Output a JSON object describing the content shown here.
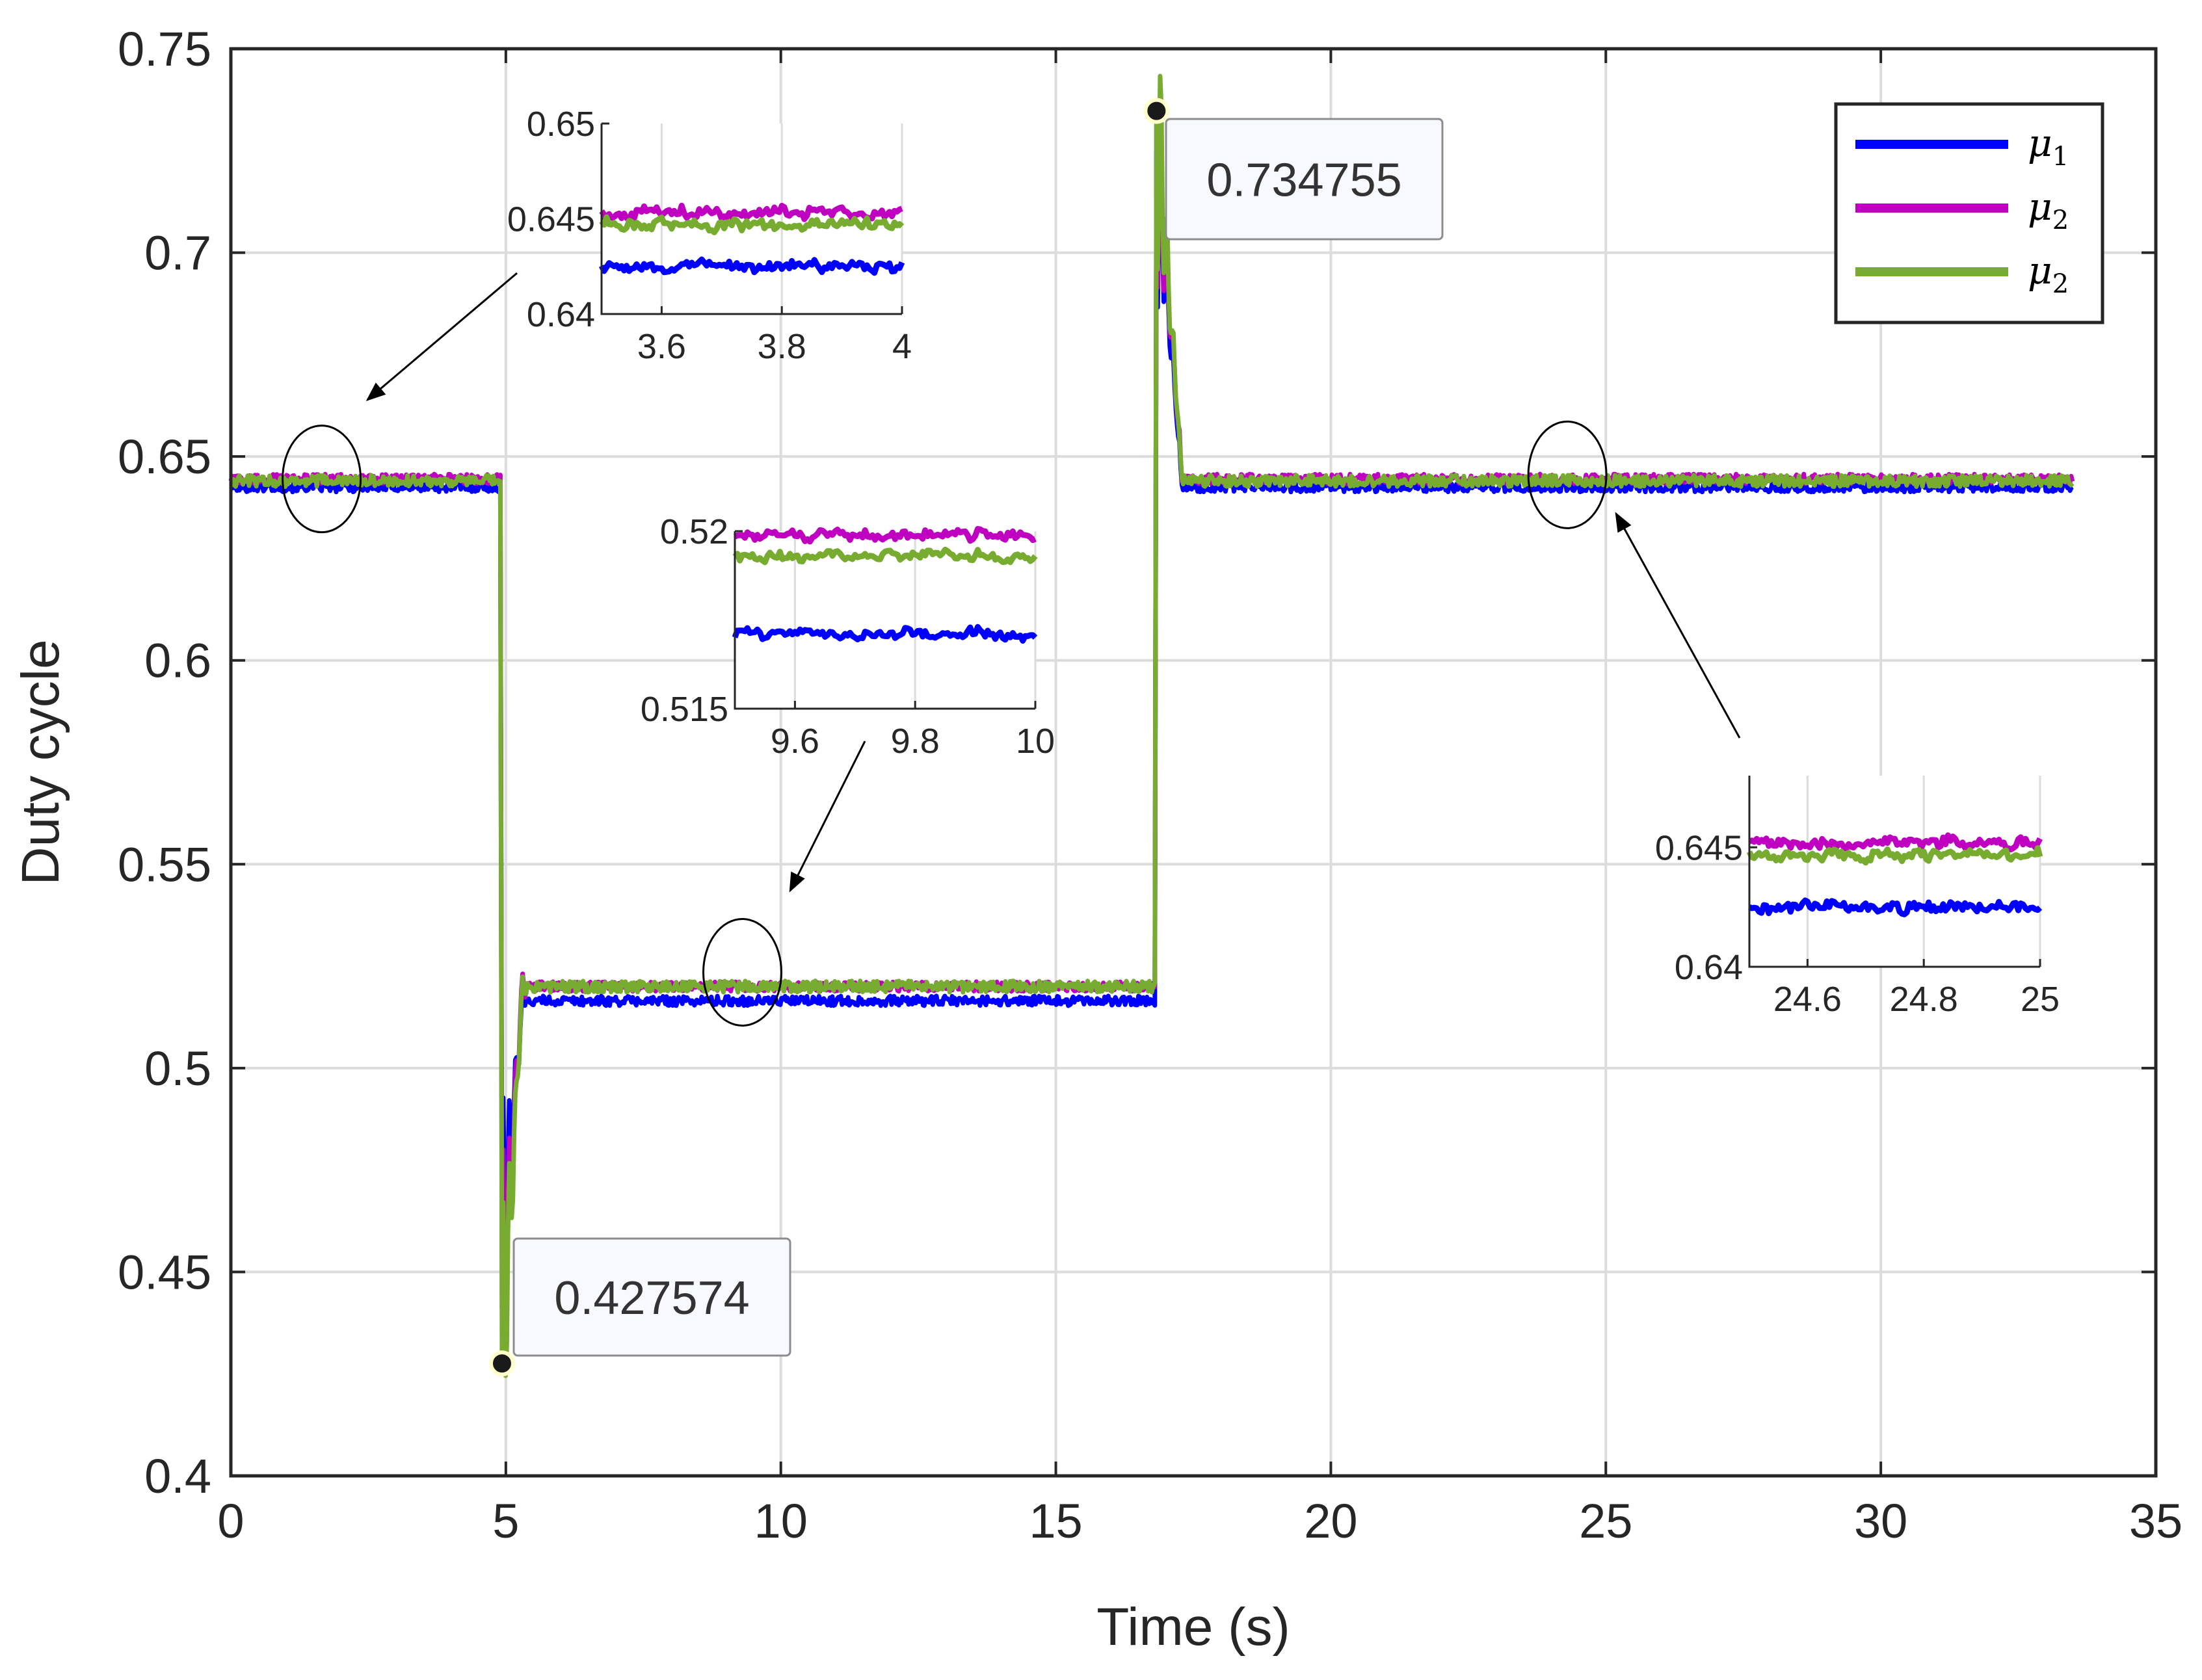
{
  "chart_data": {
    "type": "line",
    "title": "",
    "xlabel": "Time (s)",
    "ylabel": "Duty cycle",
    "xlim": [
      0,
      35
    ],
    "ylim": [
      0.4,
      0.75
    ],
    "xticks": [
      "0",
      "5",
      "10",
      "15",
      "20",
      "25",
      "30",
      "35"
    ],
    "yticks": [
      "0.4",
      "0.45",
      "0.5",
      "0.55",
      "0.6",
      "0.65",
      "0.7",
      "0.75"
    ],
    "grid": true,
    "legend": {
      "position": "top-right",
      "entries": [
        {
          "base": "μ",
          "sub": "1",
          "color": "#0000ff"
        },
        {
          "base": "μ",
          "sub": "2",
          "color": "#c000c0"
        },
        {
          "base": "μ",
          "sub": "2",
          "color": "#77ac30"
        }
      ]
    },
    "series": [
      {
        "name": "μ1",
        "color": "#0000ff",
        "noise": 0.0012,
        "levels": [
          [
            0,
            0.6425
          ],
          [
            4.9,
            0.6425
          ],
          [
            4.93,
            0.455
          ],
          [
            5.3,
            0.5165
          ],
          [
            16.8,
            0.5165
          ],
          [
            16.83,
            0.725
          ],
          [
            17.3,
            0.6425
          ],
          [
            33.5,
            0.6425
          ]
        ]
      },
      {
        "name": "μ2",
        "color": "#c000c0",
        "noise": 0.0012,
        "levels": [
          [
            0,
            0.6445
          ],
          [
            4.9,
            0.6445
          ],
          [
            4.93,
            0.44
          ],
          [
            5.3,
            0.52
          ],
          [
            16.8,
            0.52
          ],
          [
            16.83,
            0.73
          ],
          [
            17.3,
            0.6445
          ],
          [
            33.5,
            0.6445
          ]
        ]
      },
      {
        "name": "μ2",
        "color": "#77ac30",
        "noise": 0.0014,
        "levels": [
          [
            0,
            0.644
          ],
          [
            4.9,
            0.644
          ],
          [
            4.93,
            0.4276
          ],
          [
            5.3,
            0.52
          ],
          [
            16.8,
            0.52
          ],
          [
            16.83,
            0.7348
          ],
          [
            17.3,
            0.644
          ],
          [
            33.5,
            0.644
          ]
        ]
      }
    ],
    "datatips": [
      {
        "x": 4.93,
        "y": 0.427574,
        "label": "0.427574"
      },
      {
        "x": 16.83,
        "y": 0.734755,
        "label": "0.734755"
      }
    ],
    "insets": [
      {
        "xlim": [
          3.5,
          4.0
        ],
        "ylim": [
          0.64,
          0.65
        ],
        "xticks": [
          "3.6",
          "3.8",
          "4"
        ],
        "yticks": [
          "0.64",
          "0.645",
          "0.65"
        ],
        "means": [
          0.6425,
          0.6453,
          0.6447
        ],
        "zoom_center": [
          1.65,
          0.6445
        ]
      },
      {
        "xlim": [
          9.5,
          10.0
        ],
        "ylim": [
          0.515,
          0.52
        ],
        "xticks": [
          "9.6",
          "9.8",
          "10"
        ],
        "yticks": [
          "0.515",
          "0.52"
        ],
        "means": [
          0.5171,
          0.5199,
          0.5193
        ],
        "zoom_center": [
          9.3,
          0.5235
        ]
      },
      {
        "xlim": [
          24.5,
          25.0
        ],
        "ylim": [
          0.64,
          0.648
        ],
        "xticks": [
          "24.6",
          "24.8",
          "25"
        ],
        "yticks": [
          "0.64",
          "0.645"
        ],
        "means": [
          0.6425,
          0.6452,
          0.6447
        ],
        "zoom_center": [
          24.3,
          0.6455
        ]
      }
    ]
  }
}
